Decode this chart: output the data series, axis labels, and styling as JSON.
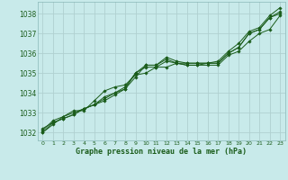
{
  "title": "Graphe pression niveau de la mer (hPa)",
  "bg_color": "#c8eaea",
  "grid_color": "#b0d0d0",
  "text_color": "#1a5c1a",
  "line_color": "#1a5c1a",
  "xlim": [
    -0.5,
    23.5
  ],
  "ylim": [
    1031.6,
    1038.6
  ],
  "yticks": [
    1032,
    1033,
    1034,
    1035,
    1036,
    1037,
    1038
  ],
  "xticks": [
    0,
    1,
    2,
    3,
    4,
    5,
    6,
    7,
    8,
    9,
    10,
    11,
    12,
    13,
    14,
    15,
    16,
    17,
    18,
    19,
    20,
    21,
    22,
    23
  ],
  "series": [
    [
      1032.1,
      1032.6,
      1032.8,
      1033.0,
      1033.2,
      1033.4,
      1033.6,
      1033.9,
      1034.2,
      1035.0,
      1035.4,
      1035.4,
      1035.8,
      1035.6,
      1035.5,
      1035.5,
      1035.5,
      1035.6,
      1036.1,
      1036.5,
      1037.1,
      1037.3,
      1037.9,
      1038.3
    ],
    [
      1032.2,
      1032.5,
      1032.7,
      1032.9,
      1033.2,
      1033.4,
      1033.8,
      1034.0,
      1034.2,
      1034.8,
      1035.4,
      1035.4,
      1035.7,
      1035.5,
      1035.5,
      1035.5,
      1035.5,
      1035.5,
      1036.0,
      1036.3,
      1037.0,
      1037.2,
      1037.8,
      1038.1
    ],
    [
      1032.0,
      1032.5,
      1032.7,
      1032.9,
      1033.2,
      1033.4,
      1033.7,
      1034.0,
      1034.3,
      1035.0,
      1035.3,
      1035.3,
      1035.6,
      1035.5,
      1035.4,
      1035.4,
      1035.5,
      1035.5,
      1036.0,
      1036.3,
      1037.0,
      1037.2,
      1037.8,
      1038.0
    ],
    [
      1032.0,
      1032.4,
      1032.8,
      1033.1,
      1033.1,
      1033.6,
      1034.1,
      1034.3,
      1034.4,
      1034.9,
      1035.0,
      1035.3,
      1035.3,
      1035.5,
      1035.4,
      1035.4,
      1035.4,
      1035.4,
      1035.9,
      1036.1,
      1036.6,
      1037.0,
      1037.2,
      1037.9
    ]
  ]
}
